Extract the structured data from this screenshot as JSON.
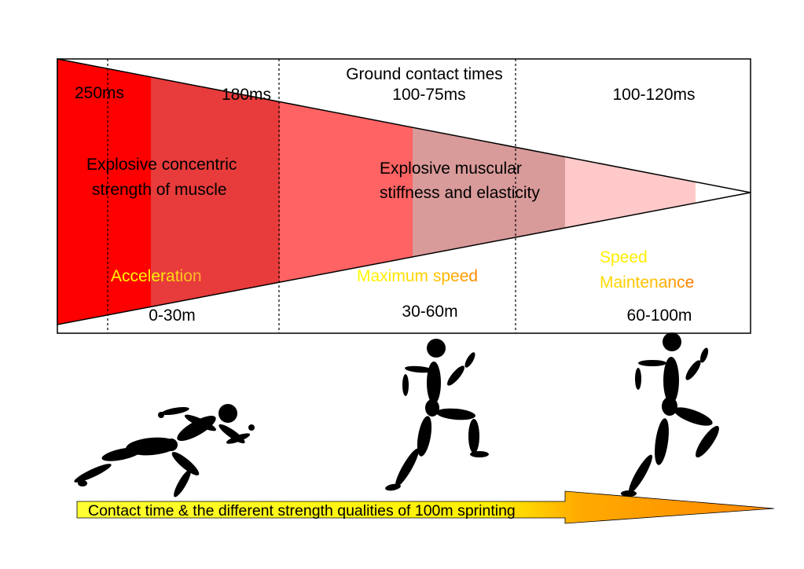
{
  "title": "Ground contact times",
  "contact_times": [
    "250ms",
    "180ms",
    "100-75ms",
    "100-120ms"
  ],
  "strength_qualities": [
    {
      "line1": "Explosive concentric",
      "line2": "strength of muscle"
    },
    {
      "line1": "Explosive muscular",
      "line2": "stiffness and elasticity"
    }
  ],
  "phases": [
    {
      "name": "Acceleration",
      "range": "0-30m"
    },
    {
      "name": "Maximum speed",
      "range": "30-60m"
    },
    {
      "name_line1": "Speed",
      "name_line2": "Maintenance",
      "range": "60-100m"
    }
  ],
  "caption": "Contact time & the different strength qualities of 100m sprinting",
  "colors": {
    "wedge_dark_red": "#ff0000",
    "wedge_red": "#e83b3b",
    "wedge_salmon": "#ff6363",
    "wedge_dusty_pink": "#d99a9a",
    "wedge_light_pink": "#ffc9c9",
    "phase_label_yellow": "#ffff00",
    "phase_label_orange": "#ff9900",
    "arrow_yellow": "#ffff33",
    "arrow_orange": "#ff8800"
  },
  "figures": [
    "sprinter-start-figure",
    "sprinter-max-speed-figure",
    "sprinter-maintenance-figure"
  ]
}
